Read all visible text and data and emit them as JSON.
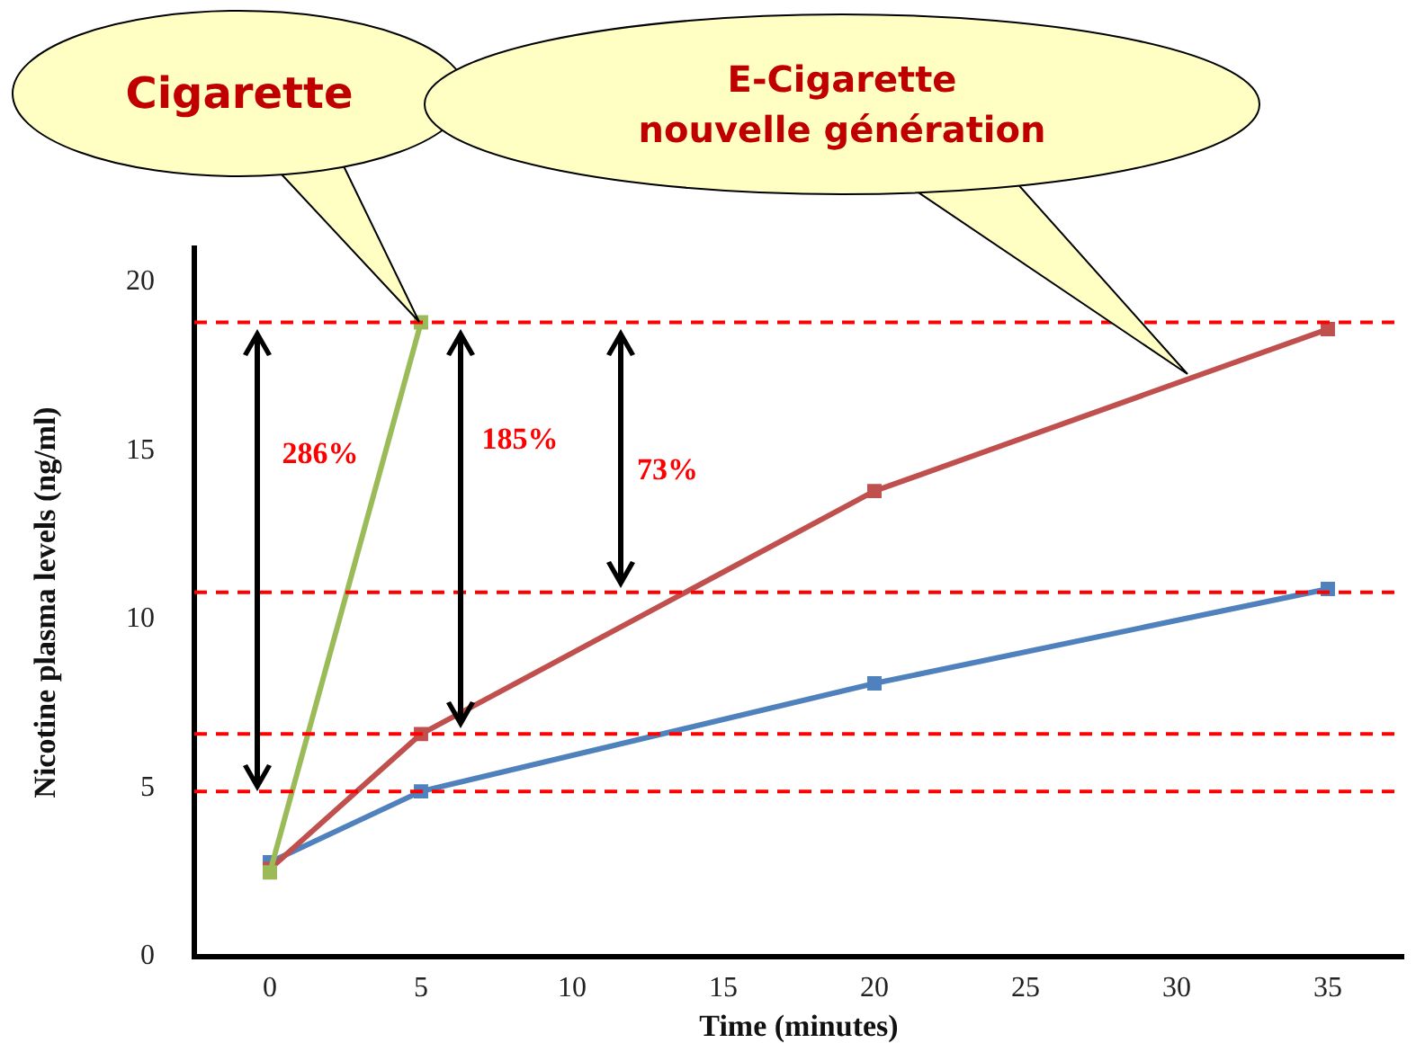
{
  "chart_data": {
    "type": "line",
    "xlabel": "Time (minutes)",
    "ylabel": "Nicotine plasma levels (ng/ml)",
    "xlim": [
      -2.5,
      37.5
    ],
    "xticks": [
      0,
      5,
      10,
      15,
      20,
      25,
      30,
      35
    ],
    "ylim": [
      0,
      21
    ],
    "yticks": [
      0,
      5,
      10,
      15,
      20
    ],
    "grid": false,
    "legend": false,
    "marker": "square",
    "series": [
      {
        "color": "#9bbb59",
        "x": [
          0,
          5
        ],
        "values": [
          2.5,
          18.8
        ]
      },
      {
        "color": "#c0504d",
        "x": [
          0,
          5,
          20,
          35
        ],
        "values": [
          2.6,
          6.6,
          13.8,
          18.6
        ]
      },
      {
        "color": "#4f81bd",
        "x": [
          0,
          5,
          20,
          35
        ],
        "values": [
          2.8,
          4.9,
          8.1,
          10.9
        ]
      }
    ],
    "ref_lines": [
      {
        "axis": "y",
        "value": 18.8,
        "color": "#ff0000",
        "line_style": "dashed"
      },
      {
        "axis": "y",
        "value": 10.8,
        "color": "#ff0000",
        "line_style": "dashed"
      },
      {
        "axis": "y",
        "value": 6.6,
        "color": "#ff0000",
        "line_style": "dashed"
      },
      {
        "axis": "y",
        "value": 4.9,
        "color": "#ff0000",
        "line_style": "dashed"
      }
    ],
    "annotations": [
      "286%",
      "185%",
      "73%",
      "Cigarette",
      "E-Cigarette\nnouvelle génération"
    ]
  }
}
